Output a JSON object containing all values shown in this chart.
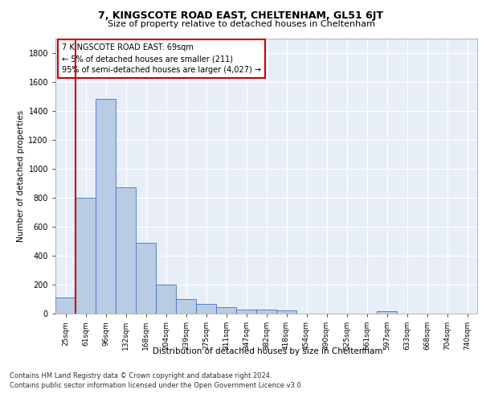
{
  "title": "7, KINGSCOTE ROAD EAST, CHELTENHAM, GL51 6JT",
  "subtitle": "Size of property relative to detached houses in Cheltenham",
  "xlabel": "Distribution of detached houses by size in Cheltenham",
  "ylabel": "Number of detached properties",
  "categories": [
    "25sqm",
    "61sqm",
    "96sqm",
    "132sqm",
    "168sqm",
    "204sqm",
    "239sqm",
    "275sqm",
    "311sqm",
    "347sqm",
    "382sqm",
    "418sqm",
    "454sqm",
    "490sqm",
    "525sqm",
    "561sqm",
    "597sqm",
    "633sqm",
    "668sqm",
    "704sqm",
    "740sqm"
  ],
  "values": [
    110,
    800,
    1480,
    870,
    490,
    200,
    100,
    65,
    42,
    30,
    27,
    22,
    0,
    0,
    0,
    0,
    18,
    0,
    0,
    0,
    0
  ],
  "bar_color": "#b8cce4",
  "bar_edge_color": "#4472c4",
  "red_line_index": 0.5,
  "annotation_text": "7 KINGSCOTE ROAD EAST: 69sqm\n← 5% of detached houses are smaller (211)\n95% of semi-detached houses are larger (4,027) →",
  "annotation_box_color": "#ffffff",
  "annotation_box_edge_color": "#cc0000",
  "ylim": [
    0,
    1900
  ],
  "yticks": [
    0,
    200,
    400,
    600,
    800,
    1000,
    1200,
    1400,
    1600,
    1800
  ],
  "footer_line1": "Contains HM Land Registry data © Crown copyright and database right 2024.",
  "footer_line2": "Contains public sector information licensed under the Open Government Licence v3.0.",
  "plot_background": "#e8eef7"
}
